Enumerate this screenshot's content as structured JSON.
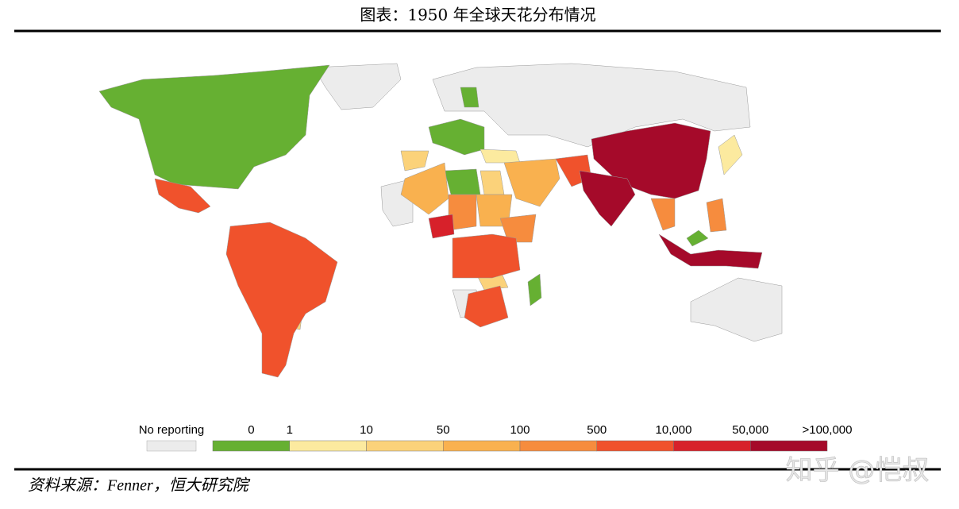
{
  "header": {
    "title": "图表：1950 年全球天花分布情况"
  },
  "legend": {
    "no_reporting": {
      "label": "No reporting",
      "color": "#ececec"
    },
    "labels": [
      "0",
      "1",
      "10",
      "50",
      "100",
      "500",
      "10,000",
      "50,000",
      ">100,000"
    ],
    "colors": [
      "#66b032",
      "#fcea9f",
      "#fbd27a",
      "#f9b14f",
      "#f68c3e",
      "#f0522c",
      "#d7212a",
      "#a50a2a"
    ]
  },
  "footer": {
    "source": "资料来源：Fenner，恒大研究院",
    "watermark": "知乎 @恺叔"
  }
}
